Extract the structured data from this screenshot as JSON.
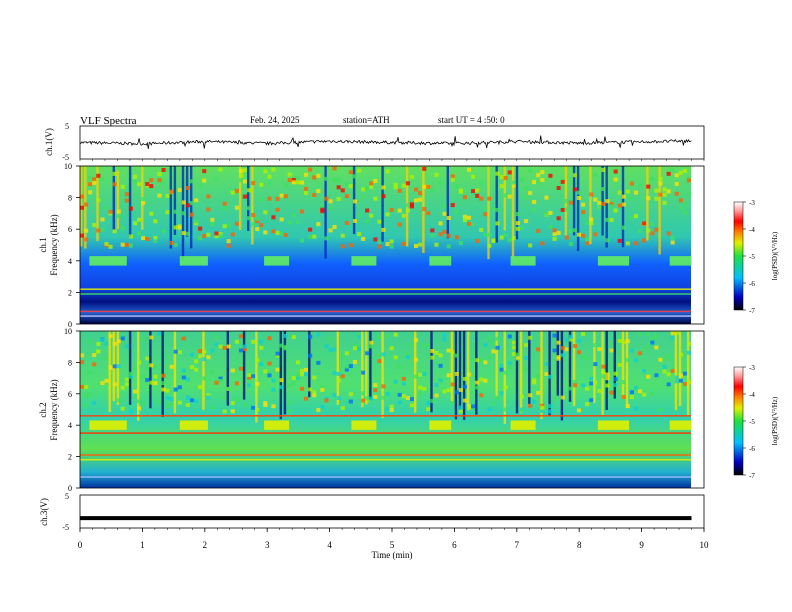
{
  "header": {
    "title": "VLF Spectra",
    "date": "Feb. 24, 2025",
    "station": "station=ATH",
    "start": "start UT = 4 :50: 0"
  },
  "colors": {
    "trace": "#000000",
    "colormap": [
      "#000040",
      "#0000c0",
      "#0060ff",
      "#00c0ff",
      "#20e0a0",
      "#60f040",
      "#e0f000",
      "#ff8000",
      "#ff0000",
      "#ffc0c0",
      "#ffffff"
    ]
  },
  "chart_data": [
    {
      "type": "line",
      "panel": "ch1-waveform",
      "ylabel": "ch.1(V)",
      "ylim": [
        -5,
        5
      ],
      "yticks": [
        "5",
        "-5"
      ],
      "xlim": [
        0,
        10
      ],
      "x_min": [
        0,
        1,
        2,
        3,
        4,
        5,
        6,
        7,
        8,
        9,
        9.8
      ],
      "y_approx": [
        0.0,
        -0.4,
        0.3,
        -0.3,
        0.4,
        0.0,
        -0.3,
        0.3,
        -0.2,
        0.2,
        0.5
      ]
    },
    {
      "type": "heatmap",
      "panel": "ch1-spectrogram",
      "ylabel": "Frequency (kHz)",
      "channel_label": "ch.1",
      "ylim": [
        0,
        10
      ],
      "yticks": [
        "0",
        "2",
        "4",
        "6",
        "8",
        "10"
      ],
      "xlim": [
        0,
        10
      ],
      "colorbar_label": "log(PSD)(V²/Hz)",
      "colorbar_ticks": [
        "-3",
        "-4",
        "-5",
        "-6",
        "-7"
      ],
      "band_bursts_kHz": 4,
      "burst_intervals_min": [
        [
          0.15,
          0.75
        ],
        [
          1.6,
          2.05
        ],
        [
          2.95,
          3.35
        ],
        [
          4.35,
          4.75
        ],
        [
          5.6,
          5.95
        ],
        [
          6.9,
          7.3
        ],
        [
          8.3,
          8.8
        ],
        [
          9.45,
          9.8
        ]
      ]
    },
    {
      "type": "heatmap",
      "panel": "ch2-spectrogram",
      "ylabel": "Frequency (kHz)",
      "channel_label": "ch.2",
      "ylim": [
        0,
        10
      ],
      "yticks": [
        "0",
        "2",
        "4",
        "6",
        "8",
        "10"
      ],
      "xlim": [
        0,
        10
      ],
      "colorbar_label": "log(PSD)(V²/Hz)",
      "colorbar_ticks": [
        "-3",
        "-4",
        "-5",
        "-6",
        "-7"
      ],
      "band_bursts_kHz": 4,
      "burst_intervals_min": [
        [
          0.15,
          0.75
        ],
        [
          1.6,
          2.05
        ],
        [
          2.95,
          3.35
        ],
        [
          4.35,
          4.75
        ],
        [
          5.6,
          5.95
        ],
        [
          6.9,
          7.3
        ],
        [
          8.3,
          8.8
        ],
        [
          9.45,
          9.8
        ]
      ]
    },
    {
      "type": "line",
      "panel": "ch3-waveform",
      "ylabel": "ch.3(V)",
      "ylim": [
        -5,
        5
      ],
      "yticks": [
        "5",
        "-5"
      ],
      "xlim": [
        0,
        10
      ],
      "xlabel": "Time (min)",
      "xticks": [
        "0",
        "1",
        "2",
        "3",
        "4",
        "5",
        "6",
        "7",
        "8",
        "9",
        "10"
      ],
      "x_min": [
        0,
        9.8
      ],
      "y_approx": [
        -2,
        -2
      ]
    }
  ]
}
